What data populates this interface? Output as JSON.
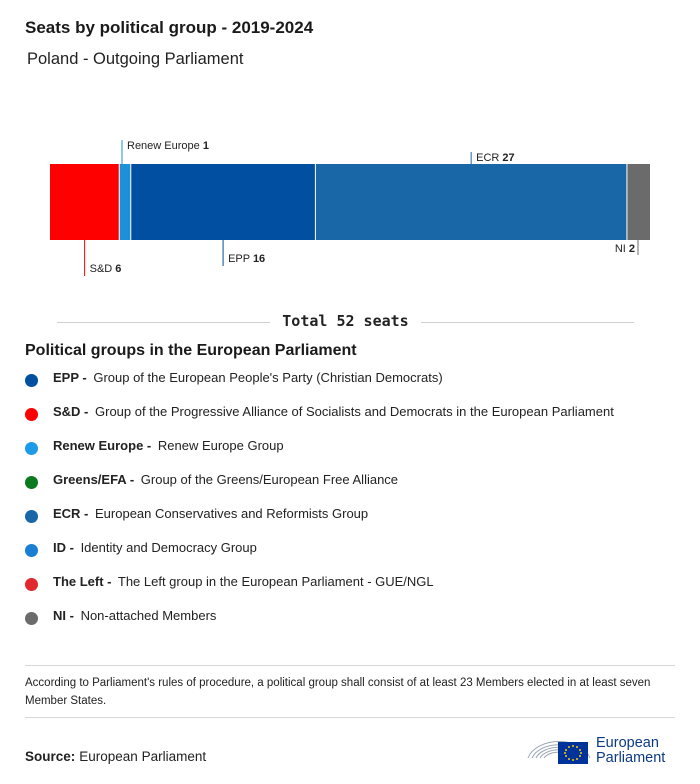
{
  "title": "Seats by political group - 2019-2024",
  "subtitle": "Poland - Outgoing Parliament",
  "total_label": "Total 52 seats",
  "chart_data": {
    "type": "bar",
    "orientation": "horizontal-stacked",
    "title": "Seats by political group - 2019-2024",
    "total": 52,
    "series": [
      {
        "name": "S&D",
        "value": 6,
        "color": "#ff0000",
        "label_pos": "below"
      },
      {
        "name": "Renew Europe",
        "value": 1,
        "color": "#1e90d8",
        "label_pos": "above"
      },
      {
        "name": "EPP",
        "value": 16,
        "color": "#004fa1",
        "label_pos": "below"
      },
      {
        "name": "ECR",
        "value": 27,
        "color": "#1a67a8",
        "label_pos": "above"
      },
      {
        "name": "NI",
        "value": 2,
        "color": "#6b6b6b",
        "label_pos": "below-right"
      }
    ]
  },
  "legend": {
    "title": "Political groups in the European Parliament",
    "items": [
      {
        "abbr": "EPP -",
        "desc": "Group of the European People's Party (Christian Democrats)",
        "color": "#004fa1"
      },
      {
        "abbr": "S&D -",
        "desc": "Group of the Progressive Alliance of Socialists and Democrats in the European Parliament",
        "color": "#ff0000"
      },
      {
        "abbr": "Renew Europe -",
        "desc": "Renew Europe Group",
        "color": "#1e9be8"
      },
      {
        "abbr": "Greens/EFA -",
        "desc": "Group of the Greens/European Free Alliance",
        "color": "#0b7a1e"
      },
      {
        "abbr": "ECR -",
        "desc": "European Conservatives and Reformists Group",
        "color": "#1a67a8"
      },
      {
        "abbr": "ID -",
        "desc": "Identity and Democracy Group",
        "color": "#1a7fd4"
      },
      {
        "abbr": "The Left -",
        "desc": "The Left group in the European Parliament - GUE/NGL",
        "color": "#e0282e"
      },
      {
        "abbr": "NI -",
        "desc": "Non-attached Members",
        "color": "#6b6b6b"
      }
    ]
  },
  "note": "According to Parliament's rules of procedure, a political group shall consist of at least 23 Members elected in at least seven Member States.",
  "source": {
    "label": "Source:",
    "value": "European Parliament"
  },
  "logo": {
    "line1": "European",
    "line2": "Parliament"
  }
}
